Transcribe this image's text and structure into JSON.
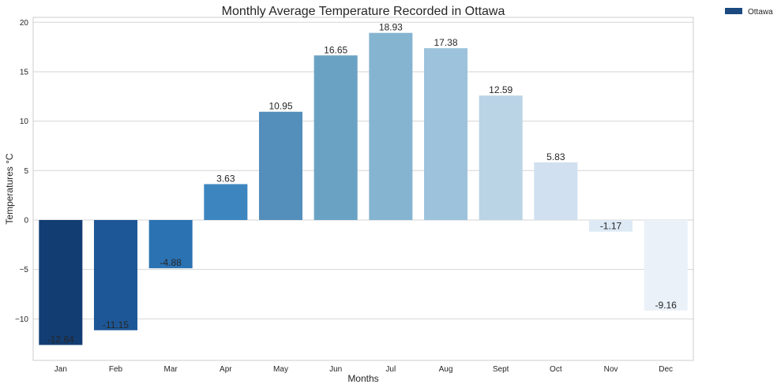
{
  "chart_data": {
    "type": "bar",
    "title": "Monthly Average Temperature Recorded in Ottawa",
    "xlabel": "Months",
    "ylabel": "Temperatures °C",
    "categories": [
      "Jan",
      "Feb",
      "Mar",
      "Apr",
      "May",
      "Jun",
      "Jul",
      "Aug",
      "Sept",
      "Oct",
      "Nov",
      "Dec"
    ],
    "series": [
      {
        "name": "Ottawa",
        "values": [
          -12.64,
          -11.15,
          -4.88,
          3.63,
          10.95,
          16.65,
          18.93,
          17.38,
          12.59,
          5.83,
          -1.17,
          -9.16
        ]
      }
    ],
    "data_labels": [
      "-12.64",
      "-11.15",
      "-4.88",
      "3.63",
      "10.95",
      "16.65",
      "18.93",
      "17.38",
      "12.59",
      "5.83",
      "-1.17",
      "-9.16"
    ],
    "yticks": [
      -10,
      -5,
      0,
      5,
      10,
      15,
      20
    ],
    "ytick_labels": [
      "−10",
      "−5",
      "0",
      "5",
      "10",
      "15",
      "20"
    ],
    "ylim": [
      -14.2,
      20.5
    ],
    "grid": true,
    "legend": {
      "position": "outside-top-right",
      "entries": [
        "Ottawa"
      ]
    },
    "colors": {
      "bars": [
        "#123d73",
        "#1e5797",
        "#2b72b3",
        "#3d85bf",
        "#548fbb",
        "#6aa2c4",
        "#85b4d1",
        "#9cc3db",
        "#bad3e5",
        "#d0e0f0",
        "#dde9f4",
        "#eaf1f9"
      ],
      "legend_swatch": "#1a4a80"
    }
  }
}
